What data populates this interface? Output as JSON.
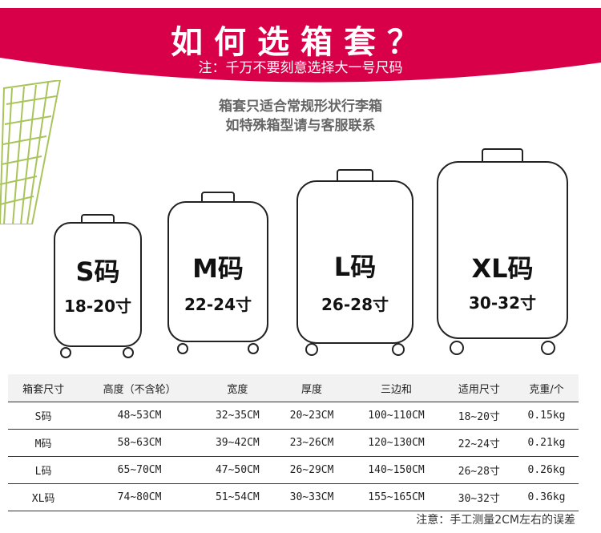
{
  "header": {
    "title": "如何选箱套？",
    "subtitle": "注：千万不要刻意选择大一号尺码",
    "color": "#d9004a"
  },
  "notice": {
    "line1": "箱套只适合常规形状行李箱",
    "line2": "如特殊箱型请与客服联系"
  },
  "suitcases": [
    {
      "name": "S码",
      "range": "18-20寸"
    },
    {
      "name": "M码",
      "range": "22-24寸"
    },
    {
      "name": "L码",
      "range": "26-28寸"
    },
    {
      "name": "XL码",
      "range": "30-32寸"
    }
  ],
  "table": {
    "headers": [
      "箱套尺寸",
      "高度（不含轮）",
      "宽度",
      "厚度",
      "三边和",
      "适用尺寸",
      "克重/个"
    ],
    "rows": [
      [
        "S码",
        "48~53CM",
        "32~35CM",
        "20~23CM",
        "100~110CM",
        "18~20寸",
        "0.15kg"
      ],
      [
        "M码",
        "58~63CM",
        "39~42CM",
        "23~26CM",
        "120~130CM",
        "22~24寸",
        "0.21kg"
      ],
      [
        "L码",
        "65~70CM",
        "47~50CM",
        "26~29CM",
        "140~150CM",
        "26~28寸",
        "0.26kg"
      ],
      [
        "XL码",
        "74~80CM",
        "51~54CM",
        "30~33CM",
        "155~165CM",
        "30~32寸",
        "0.36kg"
      ]
    ]
  },
  "footnote": "注意：手工测量2CM左右的误差"
}
